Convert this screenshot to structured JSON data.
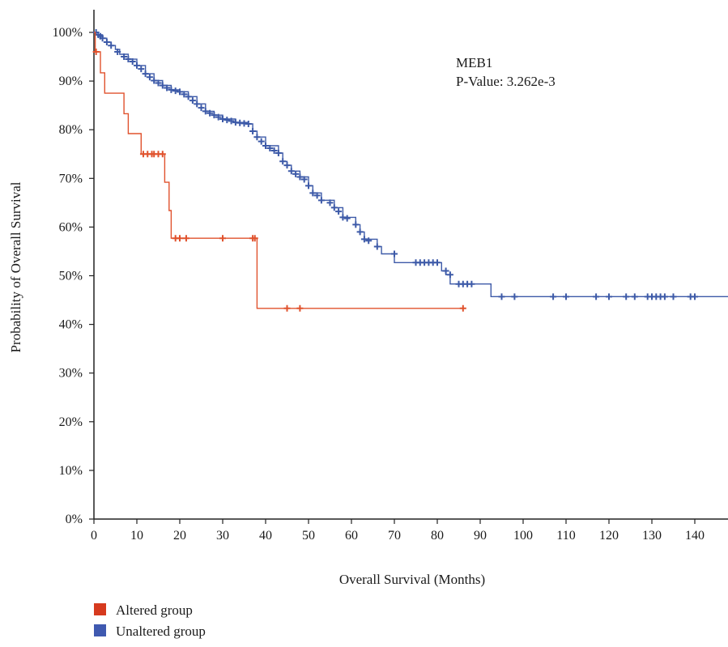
{
  "chart_data": {
    "type": "line",
    "subtype": "kaplan-meier",
    "xlabel": "Overall Survival (Months)",
    "ylabel": "Probability of Overall Survival",
    "xlim": [
      0,
      148
    ],
    "ylim": [
      0,
      100
    ],
    "x_ticks": [
      0,
      10,
      20,
      30,
      40,
      50,
      60,
      70,
      80,
      90,
      100,
      110,
      120,
      130,
      140
    ],
    "y_ticks": [
      0,
      10,
      20,
      30,
      40,
      50,
      60,
      70,
      80,
      90,
      100
    ],
    "y_tick_suffix": "%",
    "grid": false,
    "legend_position": "bottom-left",
    "annotation": {
      "gene": "MEB1",
      "pvalue": "P-Value: 3.262e-3"
    },
    "series": [
      {
        "name": "Altered group",
        "color": "#e0522d",
        "legend_color": "#d63a1e",
        "steps": [
          [
            0,
            100
          ],
          [
            0.3,
            96
          ],
          [
            1.5,
            96
          ],
          [
            1.5,
            91.7
          ],
          [
            2.5,
            91.7
          ],
          [
            2.5,
            87.5
          ],
          [
            7,
            87.5
          ],
          [
            7,
            83.3
          ],
          [
            8,
            83.3
          ],
          [
            8,
            79.2
          ],
          [
            11,
            79.2
          ],
          [
            11,
            75
          ],
          [
            16.5,
            75
          ],
          [
            16.5,
            69.2
          ],
          [
            17.5,
            69.2
          ],
          [
            17.5,
            63.4
          ],
          [
            18,
            63.4
          ],
          [
            18,
            57.7
          ],
          [
            38,
            57.7
          ],
          [
            38,
            43.3
          ],
          [
            86,
            43.3
          ]
        ],
        "censored": [
          [
            0.5,
            96
          ],
          [
            11.5,
            75
          ],
          [
            12.5,
            75
          ],
          [
            13.5,
            75
          ],
          [
            14,
            75
          ],
          [
            15,
            75
          ],
          [
            16,
            75
          ],
          [
            19,
            57.7
          ],
          [
            20,
            57.7
          ],
          [
            21.5,
            57.7
          ],
          [
            30,
            57.7
          ],
          [
            37,
            57.7
          ],
          [
            37.5,
            57.7
          ],
          [
            45,
            43.3
          ],
          [
            48,
            43.3
          ],
          [
            86,
            43.3
          ]
        ]
      },
      {
        "name": "Unaltered group",
        "color": "#3d5aa8",
        "legend_color": "#3f59b0",
        "steps": [
          [
            0,
            100
          ],
          [
            1,
            99.5
          ],
          [
            2,
            98.8
          ],
          [
            3,
            98
          ],
          [
            4,
            97.3
          ],
          [
            5,
            96.5
          ],
          [
            6,
            95.5
          ],
          [
            8,
            94.5
          ],
          [
            10,
            93.2
          ],
          [
            12,
            91.5
          ],
          [
            14,
            90.1
          ],
          [
            16,
            89.1
          ],
          [
            18,
            88.2
          ],
          [
            20,
            87.8
          ],
          [
            22,
            86.8
          ],
          [
            24,
            85.3
          ],
          [
            26,
            83.8
          ],
          [
            28,
            83
          ],
          [
            30,
            82.2
          ],
          [
            33,
            81.5
          ],
          [
            36,
            81.2
          ],
          [
            37,
            79.7
          ],
          [
            38,
            78.5
          ],
          [
            40,
            76.7
          ],
          [
            43,
            75.2
          ],
          [
            44,
            73.5
          ],
          [
            45,
            72.7
          ],
          [
            46,
            71.5
          ],
          [
            48,
            70.3
          ],
          [
            50,
            68.5
          ],
          [
            51,
            67
          ],
          [
            53,
            65.5
          ],
          [
            56,
            64
          ],
          [
            58,
            62
          ],
          [
            61,
            60.5
          ],
          [
            62,
            59
          ],
          [
            63,
            57.5
          ],
          [
            66,
            56
          ],
          [
            67,
            54.5
          ],
          [
            70,
            52.7
          ],
          [
            81,
            51
          ],
          [
            82,
            50.2
          ],
          [
            83,
            48.3
          ],
          [
            92.5,
            48.3
          ],
          [
            92.5,
            45.7
          ],
          [
            148,
            45.7
          ]
        ],
        "censored": [
          [
            0.5,
            100
          ],
          [
            1,
            99.5
          ],
          [
            1.5,
            99.2
          ],
          [
            2,
            98.8
          ],
          [
            3,
            98
          ],
          [
            4,
            97.3
          ],
          [
            5.5,
            96
          ],
          [
            7,
            95
          ],
          [
            8,
            94.5
          ],
          [
            9,
            94
          ],
          [
            10,
            93.2
          ],
          [
            11,
            92.5
          ],
          [
            12,
            91.5
          ],
          [
            13,
            90.8
          ],
          [
            14,
            90.1
          ],
          [
            15,
            89.6
          ],
          [
            16,
            89.1
          ],
          [
            17,
            88.6
          ],
          [
            18,
            88.2
          ],
          [
            19,
            88
          ],
          [
            20,
            87.8
          ],
          [
            21,
            87.3
          ],
          [
            22,
            86.8
          ],
          [
            23,
            86
          ],
          [
            24,
            85.3
          ],
          [
            25,
            84.5
          ],
          [
            26,
            83.8
          ],
          [
            27,
            83.4
          ],
          [
            28,
            83
          ],
          [
            29,
            82.6
          ],
          [
            30,
            82.2
          ],
          [
            31,
            82
          ],
          [
            32,
            81.8
          ],
          [
            33,
            81.5
          ],
          [
            34,
            81.4
          ],
          [
            35,
            81.3
          ],
          [
            36,
            81.2
          ],
          [
            37,
            79.7
          ],
          [
            38,
            78.5
          ],
          [
            39,
            77.6
          ],
          [
            40,
            76.7
          ],
          [
            41,
            76.2
          ],
          [
            42,
            75.7
          ],
          [
            43,
            75.2
          ],
          [
            44,
            73.5
          ],
          [
            45,
            72.7
          ],
          [
            46,
            71.5
          ],
          [
            47,
            70.9
          ],
          [
            48,
            70.3
          ],
          [
            49,
            69.8
          ],
          [
            50,
            68.5
          ],
          [
            51,
            67
          ],
          [
            52,
            66.5
          ],
          [
            53,
            65.5
          ],
          [
            55,
            65
          ],
          [
            56,
            64
          ],
          [
            57,
            63.2
          ],
          [
            58,
            62
          ],
          [
            59,
            61.8
          ],
          [
            61,
            60.5
          ],
          [
            62,
            59
          ],
          [
            63,
            57.5
          ],
          [
            64,
            57.2
          ],
          [
            66,
            56
          ],
          [
            70,
            54.5
          ],
          [
            75,
            52.7
          ],
          [
            76,
            52.7
          ],
          [
            77,
            52.7
          ],
          [
            78,
            52.7
          ],
          [
            79,
            52.7
          ],
          [
            80,
            52.7
          ],
          [
            82,
            51
          ],
          [
            83,
            50.2
          ],
          [
            85,
            48.3
          ],
          [
            86,
            48.3
          ],
          [
            87,
            48.3
          ],
          [
            88,
            48.3
          ],
          [
            95,
            45.7
          ],
          [
            98,
            45.7
          ],
          [
            107,
            45.7
          ],
          [
            110,
            45.7
          ],
          [
            117,
            45.7
          ],
          [
            120,
            45.7
          ],
          [
            124,
            45.7
          ],
          [
            126,
            45.7
          ],
          [
            129,
            45.7
          ],
          [
            130,
            45.7
          ],
          [
            131,
            45.7
          ],
          [
            132,
            45.7
          ],
          [
            133,
            45.7
          ],
          [
            135,
            45.7
          ],
          [
            139,
            45.7
          ],
          [
            140,
            45.7
          ]
        ]
      }
    ]
  }
}
